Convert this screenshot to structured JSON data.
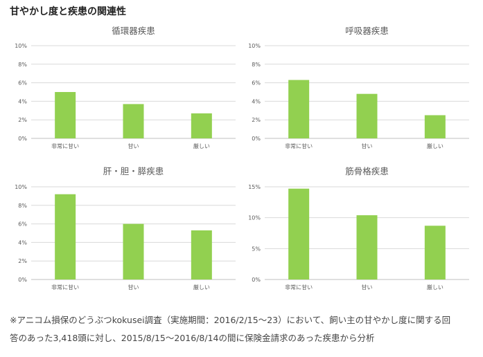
{
  "page_title": "甘やかし度と疾患の関連性",
  "footnote": {
    "line1": "※アニコム損保のどうぶつkokusei調査（実施期間：2016/2/15～23）において、飼い主の甘やかし度に関する回",
    "line2": "答のあった3,418頭に対し、2015/8/15～2016/8/14の間に保険金請求のあった疾患から分析"
  },
  "colors": {
    "bar": "#92d050",
    "grid": "#d9d9d9",
    "axis": "#bfbfbf",
    "text": "#595959"
  },
  "chart_data": [
    {
      "type": "bar",
      "title": "循環器疾患",
      "categories": [
        "非常に甘い",
        "甘い",
        "厳しい"
      ],
      "values": [
        5.0,
        3.7,
        2.7
      ],
      "unit": "%",
      "ylim": [
        0,
        10
      ],
      "yticks": [
        0,
        2,
        4,
        6,
        8,
        10
      ],
      "ytick_labels": [
        "0%",
        "2%",
        "4%",
        "6%",
        "8%",
        "10%"
      ],
      "grid": true,
      "legend": "none"
    },
    {
      "type": "bar",
      "title": "呼吸器疾患",
      "categories": [
        "非常に甘い",
        "甘い",
        "厳しい"
      ],
      "values": [
        6.3,
        4.8,
        2.5
      ],
      "unit": "%",
      "ylim": [
        0,
        10
      ],
      "yticks": [
        0,
        2,
        4,
        6,
        8,
        10
      ],
      "ytick_labels": [
        "0%",
        "2%",
        "4%",
        "6%",
        "8%",
        "10%"
      ],
      "grid": true,
      "legend": "none"
    },
    {
      "type": "bar",
      "title": "肝・胆・膵疾患",
      "categories": [
        "非常に甘い",
        "甘い",
        "厳しい"
      ],
      "values": [
        9.2,
        6.0,
        5.3
      ],
      "unit": "%",
      "ylim": [
        0,
        10
      ],
      "yticks": [
        0,
        2,
        4,
        6,
        8,
        10
      ],
      "ytick_labels": [
        "0%",
        "2%",
        "4%",
        "6%",
        "8%",
        "10%"
      ],
      "grid": true,
      "legend": "none"
    },
    {
      "type": "bar",
      "title": "筋骨格疾患",
      "categories": [
        "非常に甘い",
        "甘い",
        "厳しい"
      ],
      "values": [
        14.7,
        10.4,
        8.7
      ],
      "unit": "%",
      "ylim": [
        0,
        15
      ],
      "yticks": [
        0,
        5,
        10,
        15
      ],
      "ytick_labels": [
        "0%",
        "5%",
        "10%",
        "15%"
      ],
      "grid": true,
      "legend": "none"
    }
  ]
}
